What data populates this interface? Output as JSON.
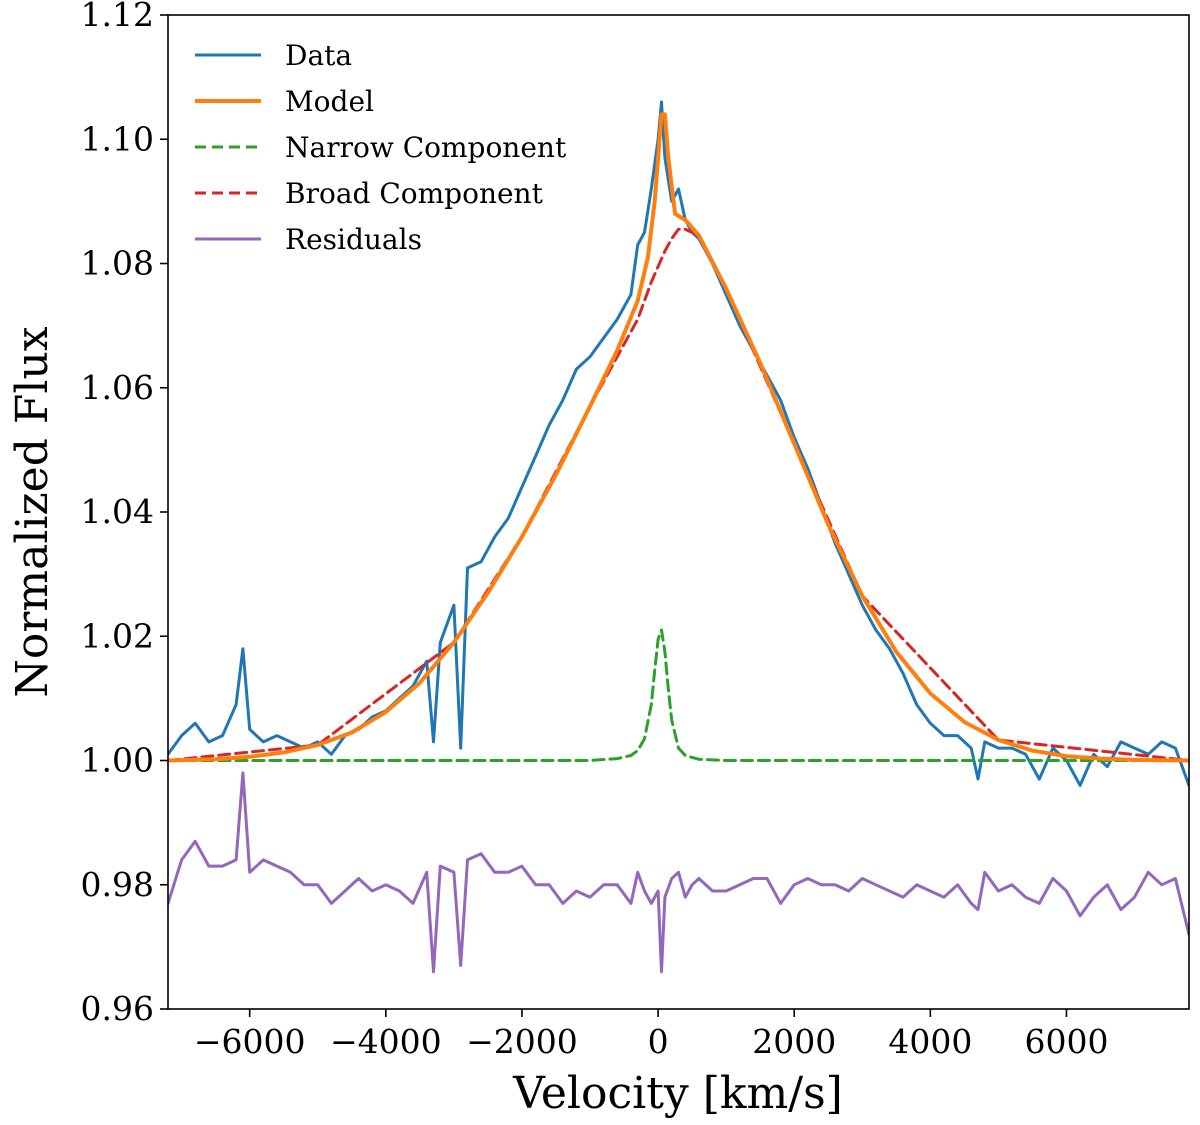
{
  "chart_data": {
    "type": "line",
    "title": "",
    "xlabel": "Velocity [km/s]",
    "ylabel": "Normalized Flux",
    "xlim": [
      -7200,
      7800
    ],
    "ylim": [
      0.96,
      1.12
    ],
    "xticks": [
      -6000,
      -4000,
      -2000,
      0,
      2000,
      4000,
      6000
    ],
    "xtick_labels": [
      "−6000",
      "−4000",
      "−2000",
      "0",
      "2000",
      "4000",
      "6000"
    ],
    "yticks": [
      0.96,
      0.98,
      1.0,
      1.02,
      1.04,
      1.06,
      1.08,
      1.1,
      1.12
    ],
    "ytick_labels": [
      "0.96",
      "0.98",
      "1.00",
      "1.02",
      "1.04",
      "1.06",
      "1.08",
      "1.10",
      "1.12"
    ],
    "grid": false,
    "legend_position": "top-left",
    "series": [
      {
        "name": "Data",
        "color": "#1f77b4",
        "style": "solid",
        "x": [
          -7200,
          -7000,
          -6800,
          -6600,
          -6400,
          -6200,
          -6100,
          -6000,
          -5800,
          -5600,
          -5400,
          -5200,
          -5000,
          -4800,
          -4600,
          -4400,
          -4200,
          -4000,
          -3800,
          -3600,
          -3400,
          -3300,
          -3200,
          -3000,
          -2900,
          -2800,
          -2600,
          -2400,
          -2200,
          -2000,
          -1800,
          -1600,
          -1400,
          -1200,
          -1000,
          -800,
          -600,
          -400,
          -300,
          -200,
          -100,
          0,
          50,
          100,
          200,
          300,
          400,
          500,
          600,
          800,
          1000,
          1200,
          1400,
          1600,
          1800,
          2000,
          2200,
          2400,
          2600,
          2800,
          3000,
          3200,
          3400,
          3600,
          3800,
          4000,
          4200,
          4400,
          4600,
          4700,
          4800,
          5000,
          5200,
          5400,
          5600,
          5800,
          6000,
          6200,
          6400,
          6600,
          6800,
          7000,
          7200,
          7400,
          7600,
          7800
        ],
        "y": [
          1.001,
          1.004,
          1.006,
          1.003,
          1.004,
          1.009,
          1.018,
          1.005,
          1.003,
          1.004,
          1.003,
          1.002,
          1.003,
          1.001,
          1.004,
          1.005,
          1.007,
          1.008,
          1.01,
          1.012,
          1.016,
          1.003,
          1.019,
          1.025,
          1.002,
          1.031,
          1.032,
          1.036,
          1.039,
          1.044,
          1.049,
          1.054,
          1.058,
          1.063,
          1.065,
          1.068,
          1.071,
          1.075,
          1.083,
          1.085,
          1.092,
          1.1,
          1.106,
          1.097,
          1.09,
          1.092,
          1.087,
          1.085,
          1.084,
          1.08,
          1.075,
          1.07,
          1.066,
          1.062,
          1.058,
          1.052,
          1.047,
          1.041,
          1.035,
          1.03,
          1.025,
          1.021,
          1.018,
          1.014,
          1.009,
          1.006,
          1.004,
          1.004,
          1.002,
          0.997,
          1.003,
          1.002,
          1.002,
          1.001,
          0.997,
          1.002,
          1.0,
          0.996,
          1.001,
          0.999,
          1.003,
          1.002,
          1.001,
          1.003,
          1.002,
          0.996
        ]
      },
      {
        "name": "Model",
        "color": "#ff7f0e",
        "style": "solid",
        "x": [
          -7200,
          -6500,
          -6000,
          -5500,
          -5000,
          -4500,
          -4000,
          -3500,
          -3000,
          -2500,
          -2000,
          -1500,
          -1000,
          -600,
          -300,
          -150,
          -50,
          0,
          50,
          100,
          150,
          250,
          400,
          600,
          1000,
          1500,
          2000,
          2500,
          3000,
          3500,
          4000,
          4500,
          5000,
          5500,
          6000,
          6500,
          7000,
          7800
        ],
        "y": [
          1.0,
          1.0002,
          1.0006,
          1.0013,
          1.0025,
          1.0045,
          1.0078,
          1.0125,
          1.019,
          1.027,
          1.036,
          1.046,
          1.057,
          1.066,
          1.074,
          1.081,
          1.09,
          1.097,
          1.104,
          1.104,
          1.097,
          1.088,
          1.087,
          1.0845,
          1.076,
          1.064,
          1.051,
          1.038,
          1.0265,
          1.0175,
          1.0108,
          1.0062,
          1.0033,
          1.0016,
          1.0007,
          1.0003,
          1.0001,
          1.0
        ]
      },
      {
        "name": "Narrow Component",
        "color": "#2ca02c",
        "style": "dashed",
        "x": [
          -7200,
          -1000,
          -600,
          -400,
          -300,
          -200,
          -100,
          -50,
          0,
          50,
          100,
          150,
          200,
          300,
          400,
          600,
          1000,
          7800
        ],
        "y": [
          1.0,
          1.0,
          1.0003,
          1.0008,
          1.0016,
          1.0035,
          1.009,
          1.0145,
          1.0195,
          1.021,
          1.0175,
          1.0115,
          1.0065,
          1.002,
          1.0008,
          1.0002,
          1.0,
          1.0
        ]
      },
      {
        "name": "Broad Component",
        "color": "#d62728",
        "style": "dashed",
        "x": [
          -7200,
          -5000,
          -3000,
          -2000,
          -1000,
          -500,
          -300,
          -100,
          0,
          100,
          200,
          300,
          400,
          600,
          1000,
          2000,
          3000,
          5000,
          7800
        ],
        "y": [
          1.0,
          1.0025,
          1.019,
          1.036,
          1.057,
          1.067,
          1.071,
          1.077,
          1.0795,
          1.082,
          1.084,
          1.0855,
          1.0855,
          1.0845,
          1.076,
          1.051,
          1.0265,
          1.0033,
          1.0
        ]
      },
      {
        "name": "Residuals",
        "color": "#9467bd",
        "style": "solid",
        "x": [
          -7200,
          -7000,
          -6800,
          -6600,
          -6400,
          -6200,
          -6100,
          -6000,
          -5800,
          -5600,
          -5400,
          -5200,
          -5000,
          -4800,
          -4600,
          -4400,
          -4200,
          -4000,
          -3800,
          -3600,
          -3400,
          -3300,
          -3200,
          -3000,
          -2900,
          -2800,
          -2600,
          -2400,
          -2200,
          -2000,
          -1800,
          -1600,
          -1400,
          -1200,
          -1000,
          -800,
          -600,
          -400,
          -300,
          -200,
          -100,
          0,
          50,
          100,
          200,
          300,
          400,
          500,
          600,
          800,
          1000,
          1200,
          1400,
          1600,
          1800,
          2000,
          2200,
          2400,
          2600,
          2800,
          3000,
          3200,
          3400,
          3600,
          3800,
          4000,
          4200,
          4400,
          4600,
          4700,
          4800,
          5000,
          5200,
          5400,
          5600,
          5800,
          6000,
          6200,
          6400,
          6600,
          6800,
          7000,
          7200,
          7400,
          7600,
          7800
        ],
        "y": [
          0.977,
          0.984,
          0.987,
          0.983,
          0.983,
          0.984,
          0.998,
          0.982,
          0.984,
          0.983,
          0.982,
          0.98,
          0.98,
          0.977,
          0.979,
          0.981,
          0.979,
          0.98,
          0.979,
          0.977,
          0.982,
          0.966,
          0.983,
          0.982,
          0.967,
          0.984,
          0.985,
          0.982,
          0.982,
          0.983,
          0.98,
          0.98,
          0.977,
          0.979,
          0.978,
          0.98,
          0.98,
          0.977,
          0.982,
          0.979,
          0.977,
          0.979,
          0.966,
          0.978,
          0.981,
          0.982,
          0.978,
          0.98,
          0.981,
          0.979,
          0.979,
          0.98,
          0.981,
          0.981,
          0.977,
          0.98,
          0.981,
          0.98,
          0.98,
          0.979,
          0.981,
          0.98,
          0.979,
          0.978,
          0.98,
          0.979,
          0.978,
          0.98,
          0.977,
          0.976,
          0.982,
          0.979,
          0.98,
          0.978,
          0.977,
          0.981,
          0.979,
          0.975,
          0.978,
          0.98,
          0.976,
          0.978,
          0.982,
          0.98,
          0.981,
          0.972
        ]
      }
    ]
  }
}
